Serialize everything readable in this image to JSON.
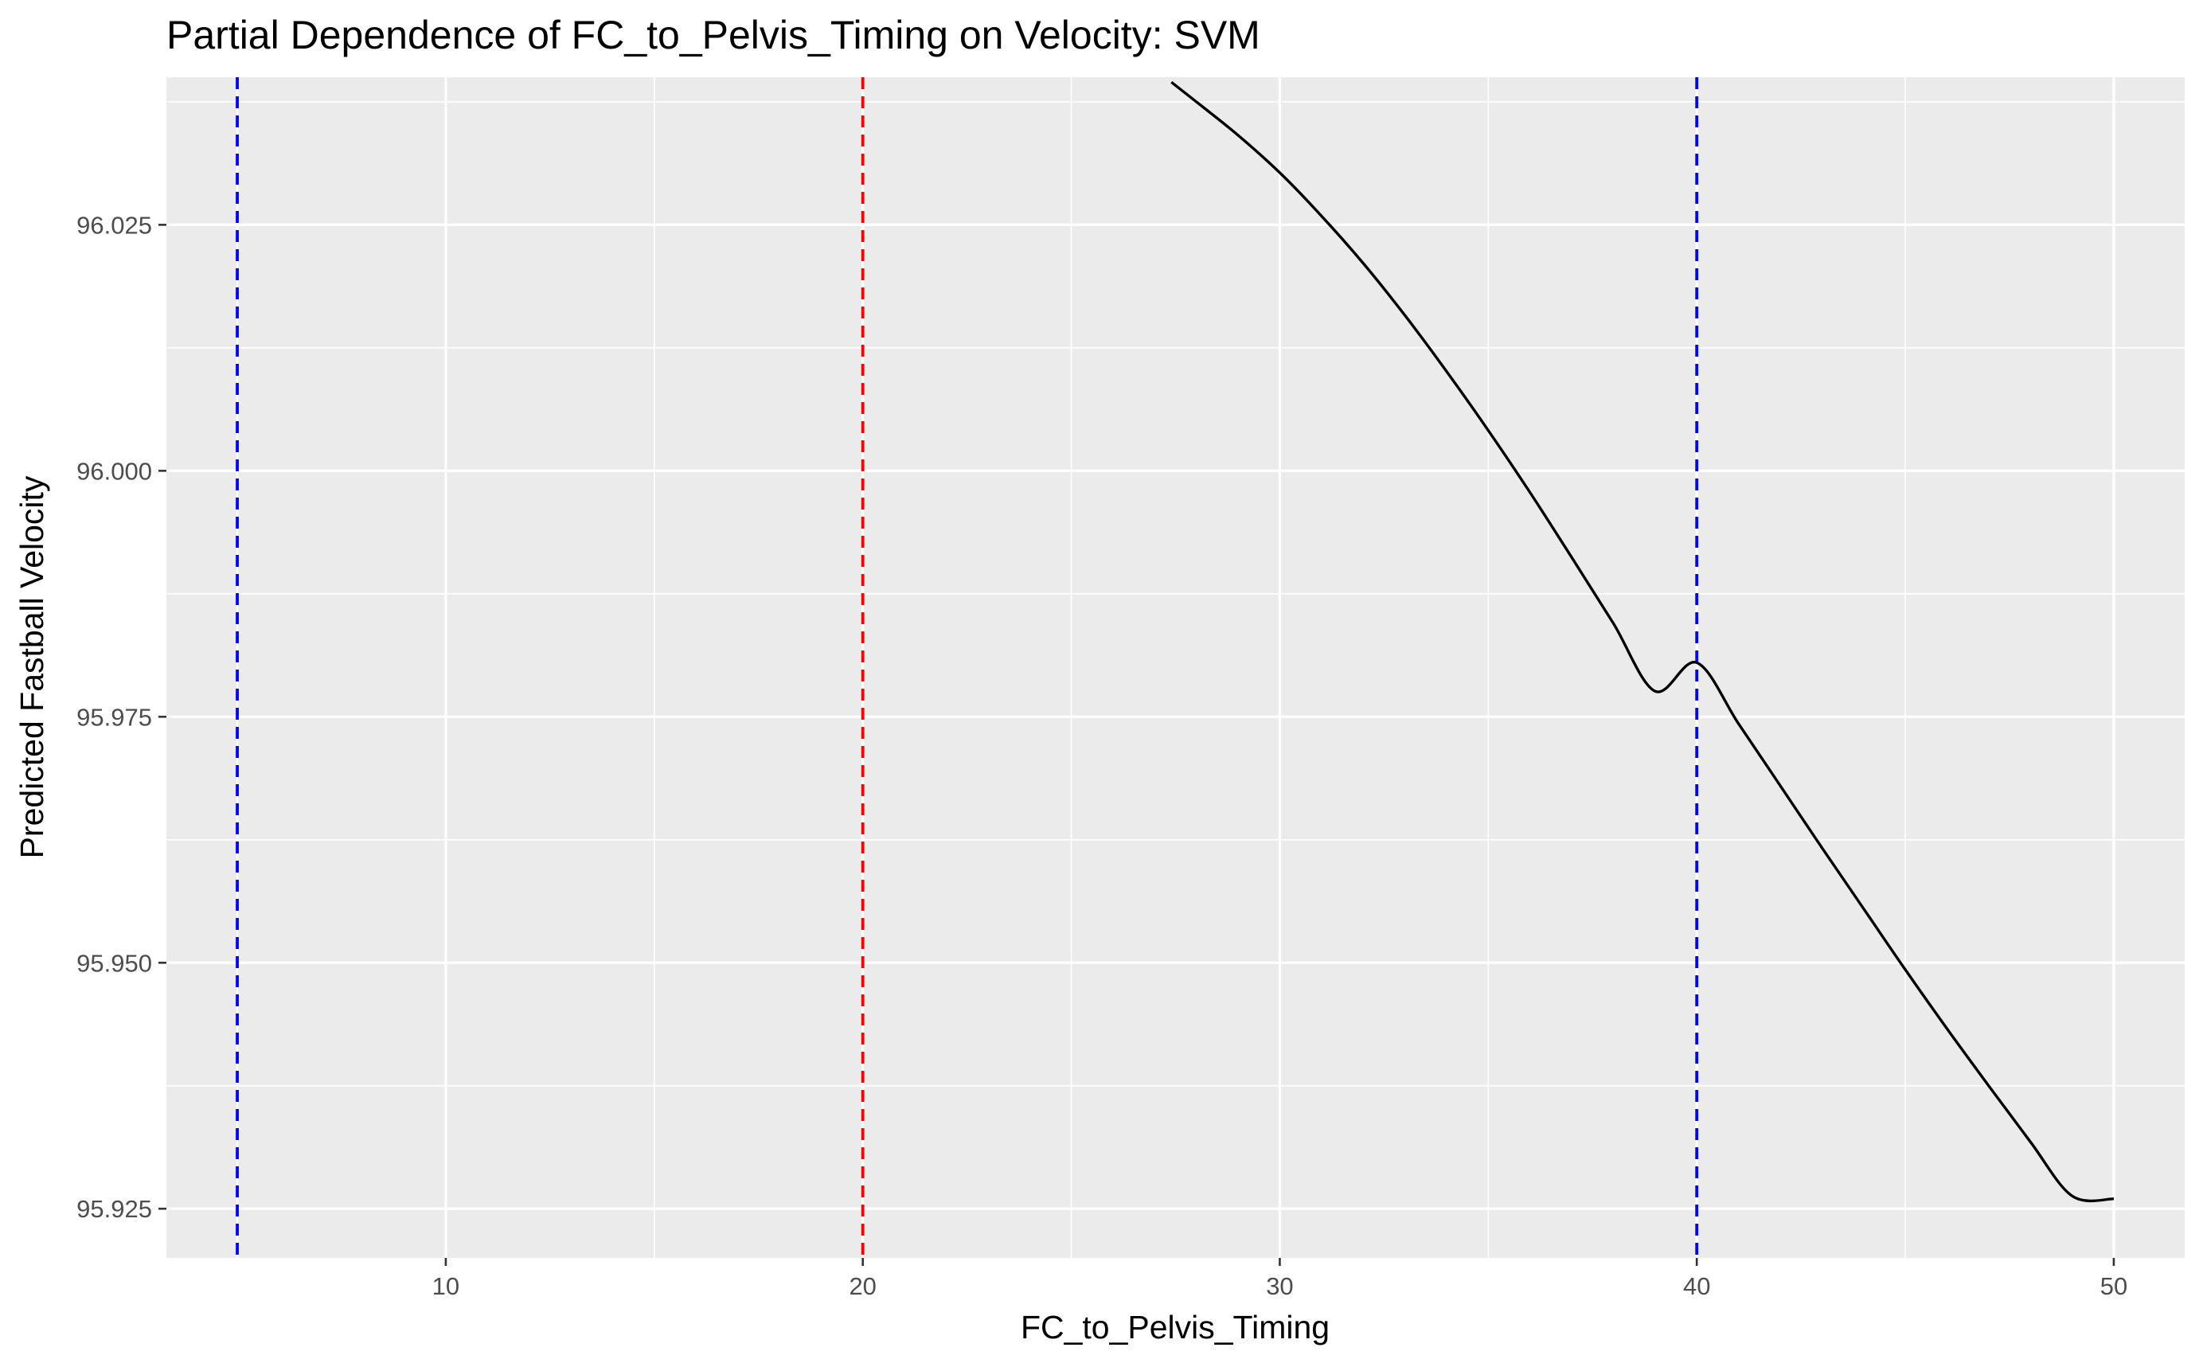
{
  "chart_data": {
    "type": "line",
    "title": "Partial Dependence of FC_to_Pelvis_Timing on Velocity: SVM",
    "xlabel": "FC_to_Pelvis_Timing",
    "ylabel": "Predicted Fastball Velocity",
    "xlim": [
      3.3,
      51.7
    ],
    "ylim": [
      95.92,
      96.04
    ],
    "x_ticks": [
      10,
      20,
      30,
      40,
      50
    ],
    "x_tick_labels": [
      "10",
      "20",
      "30",
      "40",
      "50"
    ],
    "y_ticks": [
      95.925,
      95.95,
      95.975,
      96.0,
      96.025
    ],
    "y_tick_labels": [
      "95.925",
      "95.950",
      "95.975",
      "96.000",
      "96.025"
    ],
    "grid": true,
    "legend": "none",
    "background_color": "#ebebeb",
    "grid_color": "#ffffff",
    "series": [
      {
        "color": "#000000",
        "x": [
          27.4,
          28.0,
          29.0,
          30.0,
          31.0,
          32.0,
          33.0,
          34.0,
          35.0,
          36.0,
          37.0,
          38.0,
          39.0,
          40.0,
          41.0,
          42.0,
          43.0,
          44.0,
          45.0,
          46.0,
          47.0,
          48.0,
          49.0,
          50.0
        ],
        "y": [
          96.0395,
          96.0375,
          96.0341,
          96.0303,
          96.0259,
          96.0211,
          96.0158,
          96.0101,
          96.0041,
          95.9978,
          95.9912,
          95.9845,
          95.9776,
          95.9805,
          95.9743,
          95.968,
          95.9617,
          95.9555,
          95.9493,
          95.9433,
          95.9375,
          95.9318,
          95.9263,
          95.926
        ]
      }
    ],
    "reference_lines": [
      {
        "axis": "x",
        "value": 5,
        "color": "#0000ff",
        "style": "dashed"
      },
      {
        "axis": "x",
        "value": 20,
        "color": "#ff0000",
        "style": "dashed"
      },
      {
        "axis": "x",
        "value": 40,
        "color": "#0000ff",
        "style": "dashed"
      }
    ]
  }
}
